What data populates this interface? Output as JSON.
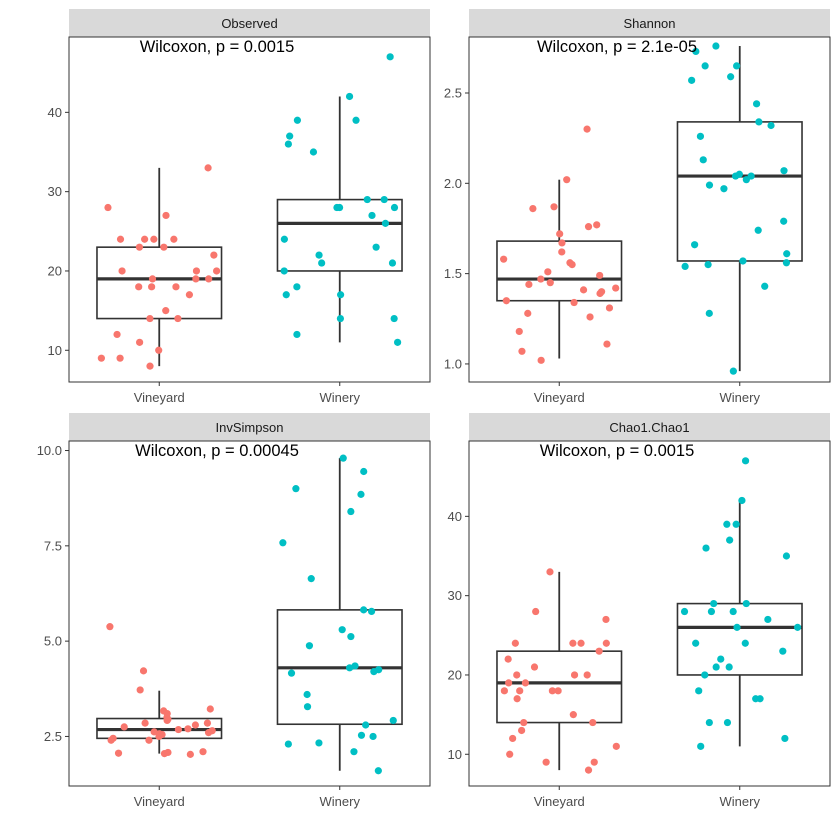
{
  "chart_data": [
    {
      "type": "box",
      "facet": "Observed",
      "annotation": "Wilcoxon, p = 0.0015",
      "categories": [
        "Vineyard",
        "Winery"
      ],
      "ylim": [
        6,
        49.5
      ],
      "yticks": [
        10,
        20,
        30,
        40
      ],
      "yticklabels": [
        "10",
        "20",
        "30",
        "40"
      ],
      "boxes": [
        {
          "group": "Vineyard",
          "min": 8,
          "q1": 14,
          "median": 19,
          "q3": 23,
          "max": 33
        },
        {
          "group": "Winery",
          "min": 11,
          "q1": 20,
          "median": 26,
          "q3": 29,
          "max": 42
        }
      ],
      "points": [
        {
          "group": "Vineyard",
          "values": [
            33,
            28,
            27,
            24,
            24,
            24,
            24,
            23,
            23,
            22,
            20,
            20,
            20,
            19,
            19,
            19,
            18,
            18,
            18,
            17,
            15,
            14,
            14,
            12,
            11,
            10,
            9,
            9,
            8
          ]
        },
        {
          "group": "Winery",
          "values": [
            47,
            42,
            39,
            39,
            37,
            36,
            35,
            29,
            29,
            28,
            28,
            28,
            27,
            26,
            24,
            23,
            22,
            21,
            21,
            20,
            18,
            17,
            17,
            14,
            14,
            12,
            11
          ]
        }
      ]
    },
    {
      "type": "box",
      "facet": "Shannon",
      "annotation": "Wilcoxon, p = 2.1e-05",
      "categories": [
        "Vineyard",
        "Winery"
      ],
      "ylim": [
        0.9,
        2.81
      ],
      "yticks": [
        1.0,
        1.5,
        2.0,
        2.5
      ],
      "yticklabels": [
        "1.0",
        "1.5",
        "2.0",
        "2.5"
      ],
      "boxes": [
        {
          "group": "Vineyard",
          "min": 1.03,
          "q1": 1.35,
          "median": 1.47,
          "q3": 1.68,
          "max": 2.02
        },
        {
          "group": "Winery",
          "min": 0.96,
          "q1": 1.57,
          "median": 2.04,
          "q3": 2.34,
          "max": 2.76
        }
      ],
      "points": [
        {
          "group": "Vineyard",
          "values": [
            2.3,
            2.02,
            1.87,
            1.86,
            1.77,
            1.76,
            1.72,
            1.67,
            1.62,
            1.58,
            1.56,
            1.55,
            1.51,
            1.49,
            1.47,
            1.45,
            1.44,
            1.42,
            1.41,
            1.4,
            1.39,
            1.35,
            1.34,
            1.31,
            1.28,
            1.26,
            1.18,
            1.11,
            1.07,
            1.02
          ]
        },
        {
          "group": "Winery",
          "values": [
            2.76,
            2.73,
            2.65,
            2.65,
            2.59,
            2.57,
            2.44,
            2.34,
            2.32,
            2.26,
            2.13,
            2.07,
            2.05,
            2.04,
            2.04,
            2.02,
            1.99,
            1.97,
            1.79,
            1.74,
            1.66,
            1.61,
            1.57,
            1.56,
            1.55,
            1.54,
            1.43,
            1.28,
            0.96
          ]
        }
      ]
    },
    {
      "type": "box",
      "facet": "InvSimpson",
      "annotation": "Wilcoxon, p = 0.00045",
      "categories": [
        "Vineyard",
        "Winery"
      ],
      "ylim": [
        1.2,
        10.25
      ],
      "yticks": [
        2.5,
        5.0,
        7.5,
        10.0
      ],
      "yticklabels": [
        "2.5",
        "5.0",
        "7.5",
        "10.0"
      ],
      "boxes": [
        {
          "group": "Vineyard",
          "min": 2.05,
          "q1": 2.45,
          "median": 2.68,
          "q3": 2.97,
          "max": 3.7
        },
        {
          "group": "Winery",
          "min": 1.6,
          "q1": 2.82,
          "median": 4.3,
          "q3": 5.82,
          "max": 9.8
        }
      ],
      "points": [
        {
          "group": "Vineyard",
          "values": [
            5.38,
            4.22,
            3.72,
            3.22,
            3.17,
            3.1,
            3.0,
            2.95,
            2.92,
            2.85,
            2.85,
            2.8,
            2.75,
            2.7,
            2.68,
            2.65,
            2.62,
            2.6,
            2.57,
            2.55,
            2.5,
            2.45,
            2.4,
            2.4,
            2.1,
            2.08,
            2.06,
            2.05,
            2.03
          ]
        },
        {
          "group": "Winery",
          "values": [
            9.8,
            9.45,
            9.0,
            8.85,
            8.4,
            7.58,
            6.64,
            5.82,
            5.78,
            5.3,
            5.12,
            4.88,
            4.35,
            4.3,
            4.25,
            4.2,
            4.16,
            3.6,
            3.28,
            2.92,
            2.8,
            2.53,
            2.5,
            2.33,
            2.3,
            2.1,
            1.6
          ]
        }
      ]
    },
    {
      "type": "box",
      "facet": "Chao1.Chao1",
      "annotation": "Wilcoxon, p = 0.0015",
      "categories": [
        "Vineyard",
        "Winery"
      ],
      "ylim": [
        6,
        49.5
      ],
      "yticks": [
        10,
        20,
        30,
        40
      ],
      "yticklabels": [
        "10",
        "20",
        "30",
        "40"
      ],
      "boxes": [
        {
          "group": "Vineyard",
          "min": 8,
          "q1": 14,
          "median": 19,
          "q3": 23,
          "max": 33
        },
        {
          "group": "Winery",
          "min": 11,
          "q1": 20,
          "median": 26,
          "q3": 29,
          "max": 42
        }
      ],
      "points": [
        {
          "group": "Vineyard",
          "values": [
            33,
            28,
            27,
            24,
            24,
            24,
            24,
            23,
            22,
            21,
            20,
            20,
            20,
            19,
            19,
            18,
            18,
            18,
            18,
            17,
            15,
            14,
            14,
            13,
            12,
            11,
            10,
            9,
            9,
            8
          ]
        },
        {
          "group": "Winery",
          "values": [
            47,
            42,
            39,
            39,
            37,
            36,
            35,
            29,
            29,
            28,
            28,
            28,
            27,
            26,
            26,
            24,
            24,
            23,
            22,
            21,
            21,
            20,
            18,
            17,
            17,
            14,
            14,
            12,
            11
          ]
        }
      ]
    }
  ],
  "colors": {
    "Vineyard": "#F8766D",
    "Winery": "#00BFC4",
    "strip": "#D9D9D9",
    "box_line": "#333333"
  }
}
